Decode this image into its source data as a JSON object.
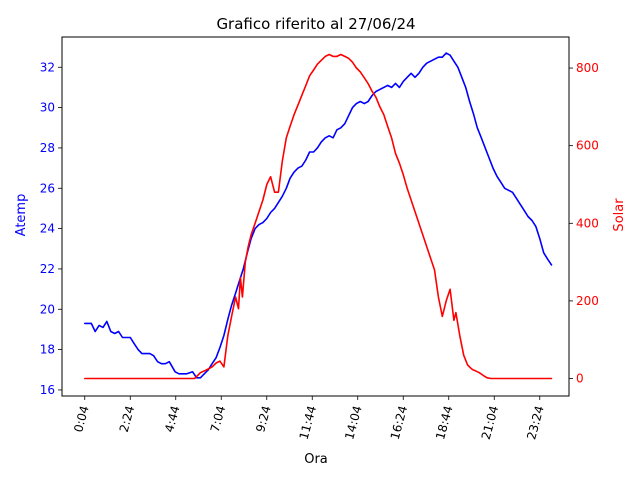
{
  "chart_data": {
    "type": "line",
    "title": "Grafico riferito al 27/06/24",
    "xlabel": "Ora",
    "x_ticks": [
      "0:04",
      "2:24",
      "4:44",
      "7:04",
      "9:24",
      "11:44",
      "14:04",
      "16:24",
      "18:44",
      "21:04",
      "23:24"
    ],
    "x_tick_hours": [
      0.0667,
      2.4,
      4.7333,
      7.0667,
      9.4,
      11.7333,
      14.0667,
      16.4,
      18.7333,
      21.0667,
      23.4
    ],
    "xlim_hours": [
      -1.1,
      24.9
    ],
    "y_left": {
      "label": "Atemp",
      "color": "#0000ff",
      "ticks": [
        16,
        18,
        20,
        22,
        24,
        26,
        28,
        30,
        32
      ],
      "ylim": [
        15.7,
        33.5
      ]
    },
    "y_right": {
      "label": "Solar",
      "color": "#ff0000",
      "ticks": [
        0,
        200,
        400,
        600,
        800
      ],
      "ylim": [
        -45,
        880
      ]
    },
    "series": [
      {
        "name": "Atemp",
        "axis": "left",
        "color": "#0000ff",
        "x": [
          0.07,
          0.4,
          0.6,
          0.8,
          1.0,
          1.2,
          1.4,
          1.6,
          1.8,
          2.0,
          2.2,
          2.4,
          2.6,
          2.8,
          3.0,
          3.2,
          3.4,
          3.6,
          3.8,
          4.0,
          4.2,
          4.4,
          4.7,
          4.9,
          5.1,
          5.3,
          5.6,
          5.8,
          6.0,
          6.2,
          6.4,
          6.6,
          6.8,
          7.0,
          7.2,
          7.4,
          7.6,
          7.8,
          8.0,
          8.2,
          8.4,
          8.6,
          8.8,
          9.0,
          9.2,
          9.4,
          9.6,
          9.8,
          10.0,
          10.2,
          10.4,
          10.6,
          10.8,
          11.0,
          11.2,
          11.4,
          11.6,
          11.8,
          12.0,
          12.2,
          12.4,
          12.6,
          12.8,
          13.0,
          13.2,
          13.4,
          13.6,
          13.8,
          14.0,
          14.2,
          14.4,
          14.6,
          14.8,
          15.0,
          15.2,
          15.4,
          15.6,
          15.8,
          16.0,
          16.2,
          16.4,
          16.6,
          16.8,
          17.0,
          17.2,
          17.4,
          17.6,
          17.8,
          18.0,
          18.2,
          18.4,
          18.6,
          18.8,
          19.0,
          19.2,
          19.4,
          19.6,
          19.8,
          20.0,
          20.2,
          20.4,
          20.6,
          20.8,
          21.0,
          21.2,
          21.4,
          21.6,
          21.8,
          22.0,
          22.2,
          22.4,
          22.6,
          22.8,
          23.0,
          23.2,
          23.4,
          23.6,
          23.8,
          24.0
        ],
        "y": [
          19.3,
          19.3,
          18.9,
          19.2,
          19.1,
          19.4,
          18.9,
          18.8,
          18.9,
          18.6,
          18.6,
          18.6,
          18.3,
          18.0,
          17.8,
          17.8,
          17.8,
          17.7,
          17.4,
          17.3,
          17.3,
          17.4,
          16.9,
          16.8,
          16.8,
          16.8,
          16.9,
          16.6,
          16.6,
          16.8,
          17.0,
          17.3,
          17.6,
          18.1,
          18.7,
          19.5,
          20.2,
          20.8,
          21.4,
          22.0,
          22.8,
          23.5,
          24.0,
          24.2,
          24.3,
          24.5,
          24.8,
          25.0,
          25.3,
          25.6,
          26.0,
          26.5,
          26.8,
          27.0,
          27.1,
          27.4,
          27.8,
          27.8,
          28.0,
          28.3,
          28.5,
          28.6,
          28.5,
          28.9,
          29.0,
          29.2,
          29.6,
          30.0,
          30.2,
          30.3,
          30.2,
          30.3,
          30.6,
          30.8,
          30.9,
          31.0,
          31.1,
          31.0,
          31.2,
          31.0,
          31.3,
          31.5,
          31.7,
          31.5,
          31.7,
          32.0,
          32.2,
          32.3,
          32.4,
          32.5,
          32.5,
          32.7,
          32.6,
          32.3,
          32.0,
          31.5,
          31.0,
          30.3,
          29.7,
          29.0,
          28.5,
          28.0,
          27.5,
          27.0,
          26.6,
          26.3,
          26.0,
          25.9,
          25.8,
          25.5,
          25.2,
          24.9,
          24.6,
          24.4,
          24.1,
          23.5,
          22.8,
          22.5,
          22.2
        ]
      },
      {
        "name": "Solar",
        "axis": "right",
        "color": "#ff0000",
        "x": [
          0.07,
          1.0,
          2.0,
          3.0,
          4.0,
          5.0,
          5.7,
          6.0,
          6.3,
          6.6,
          6.8,
          7.0,
          7.2,
          7.4,
          7.6,
          7.8,
          7.95,
          8.05,
          8.15,
          8.3,
          8.45,
          8.6,
          8.8,
          9.0,
          9.2,
          9.4,
          9.6,
          9.8,
          10.0,
          10.2,
          10.4,
          10.6,
          10.8,
          11.0,
          11.2,
          11.4,
          11.6,
          11.8,
          12.0,
          12.2,
          12.4,
          12.6,
          12.8,
          13.0,
          13.2,
          13.4,
          13.6,
          13.8,
          14.0,
          14.2,
          14.4,
          14.6,
          14.8,
          15.0,
          15.2,
          15.4,
          15.6,
          15.8,
          16.0,
          16.2,
          16.4,
          16.6,
          16.8,
          17.0,
          17.2,
          17.4,
          17.6,
          17.8,
          18.0,
          18.2,
          18.4,
          18.6,
          18.8,
          19.0,
          19.1,
          19.3,
          19.5,
          19.7,
          19.8,
          19.9,
          20.0,
          20.1,
          20.3,
          20.5,
          20.7,
          20.9,
          21.1,
          21.3,
          21.5,
          22.0,
          22.5,
          23.0,
          23.5,
          24.0
        ],
        "y": [
          0,
          0,
          0,
          0,
          0,
          0,
          0,
          15,
          22,
          30,
          40,
          45,
          30,
          110,
          160,
          210,
          180,
          260,
          210,
          300,
          340,
          370,
          400,
          430,
          460,
          500,
          520,
          480,
          480,
          560,
          620,
          650,
          680,
          705,
          730,
          755,
          780,
          795,
          810,
          820,
          830,
          835,
          830,
          830,
          835,
          830,
          825,
          815,
          800,
          790,
          775,
          760,
          740,
          725,
          700,
          680,
          650,
          620,
          580,
          555,
          525,
          490,
          460,
          430,
          400,
          370,
          340,
          310,
          280,
          210,
          160,
          200,
          230,
          150,
          170,
          110,
          60,
          35,
          30,
          25,
          22,
          20,
          15,
          8,
          2,
          0,
          0,
          0,
          0,
          0,
          0,
          0,
          0,
          0
        ]
      }
    ],
    "grid": false
  }
}
